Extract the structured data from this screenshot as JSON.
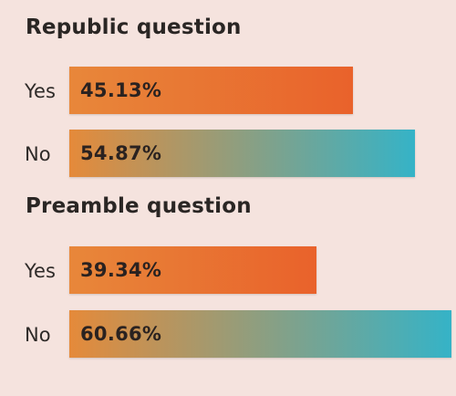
{
  "chart_data": [
    {
      "type": "bar",
      "title": "Republic question",
      "categories": [
        "Yes",
        "No"
      ],
      "values": [
        45.13,
        54.87
      ],
      "value_labels": [
        "45.13%",
        "54.87%"
      ]
    },
    {
      "type": "bar",
      "title": "Preamble question",
      "categories": [
        "Yes",
        "No"
      ],
      "values": [
        39.34,
        60.66
      ],
      "value_labels": [
        "39.34%",
        "60.66%"
      ]
    }
  ],
  "colors": {
    "background": "#f5e3de",
    "yes_bar_start": "#e8873a",
    "yes_bar_end": "#e9622b",
    "no_bar_start": "#e58a3a",
    "no_bar_end": "#35b3c7"
  }
}
